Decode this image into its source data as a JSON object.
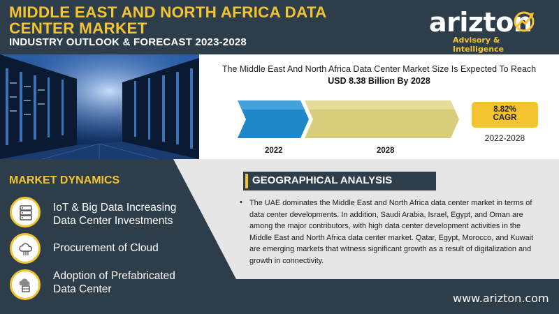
{
  "header": {
    "title_line1": "MIDDLE EAST AND NORTH AFRICA DATA",
    "title_line2": "CENTER MARKET",
    "subtitle": "INDUSTRY OUTLOOK & FORECAST 2023-2028"
  },
  "logo": {
    "word": "arizton",
    "tagline": "Advisory & Intelligence"
  },
  "market": {
    "headline": "The Middle East And North Africa Data Center Market Size Is Expected To Reach",
    "value": "USD 8.38 Billion By 2028",
    "cagr_value": "8.82%",
    "cagr_label": "CAGR",
    "period": "2022-2028",
    "year_start": "2022",
    "year_end": "2028"
  },
  "dynamics": {
    "title": "MARKET DYNAMICS",
    "items": [
      {
        "line1": "IoT & Big Data Increasing",
        "line2": "Data Center Investments",
        "icon": "server-icon"
      },
      {
        "line1": "Procurement of Cloud",
        "line2": "",
        "icon": "cloud-icon"
      },
      {
        "line1": "Adoption of Prefabricated",
        "line2": "Data Center",
        "icon": "cloud-box-icon"
      }
    ]
  },
  "geography": {
    "title": "GEOGRAPHICAL ANALYSIS",
    "bullet": "•",
    "text": "The UAE dominates the Middle East and North Africa data center market in terms of data center developments. In addition, Saudi Arabia, Israel, Egypt, and Oman are among the major contributors, with high data center development activities in the Middle East and North Africa data center market. Qatar, Egypt, Morocco, and Kuwait are emerging markets that witness significant growth as a result of digitalization and growth in connectivity."
  },
  "footer": {
    "website": "www.arizton.com"
  },
  "colors": {
    "navy": "#2d3e4a",
    "accent": "#f4c430",
    "panel_grey": "#e6e6e6",
    "bar_blue": "#1e88c9",
    "bar_gold": "#d8cd7a"
  }
}
